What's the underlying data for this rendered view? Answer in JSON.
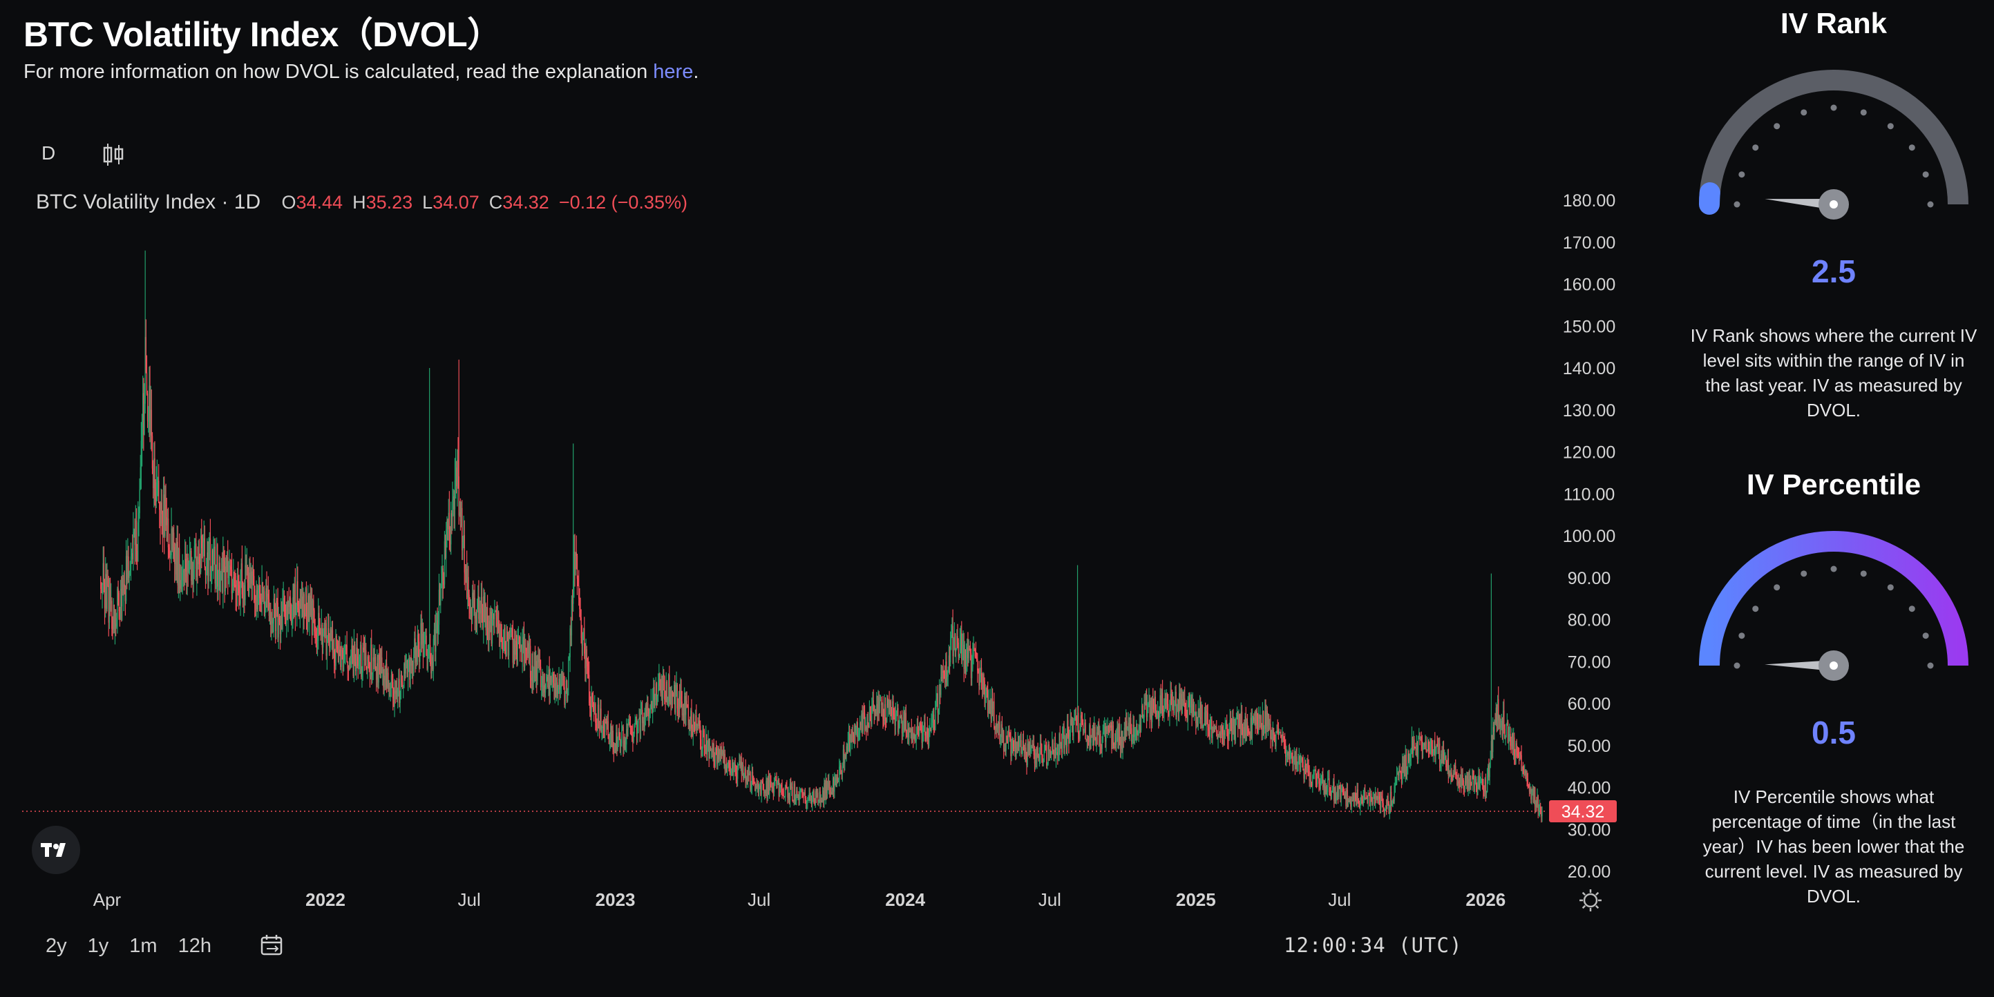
{
  "header": {
    "title": "BTC Volatility Index（DVOL）",
    "subtitle_prefix": "For more information on how DVOL is calculated, read the explanation ",
    "subtitle_link": "here",
    "subtitle_suffix": "."
  },
  "toolbar": {
    "interval_label": "D",
    "chart_type_icon": "candlestick-icon"
  },
  "legend": {
    "symbol": "BTC Volatility Index · 1D",
    "o_label": "O",
    "o_value": "34.44",
    "h_label": "H",
    "h_value": "35.23",
    "l_label": "L",
    "l_value": "34.07",
    "c_label": "C",
    "c_value": "34.32",
    "change": "−0.12 (−0.35%)"
  },
  "price_tag": "34.32",
  "ranges": [
    "2y",
    "1y",
    "1m",
    "12h"
  ],
  "clock": "12:00:34 (UTC)",
  "colors": {
    "up": "#22a06b",
    "down": "#ef4d57",
    "accent": "#6f83ff",
    "background": "#0b0c0e"
  },
  "chart_data": {
    "type": "candlestick",
    "title": "BTC Volatility Index · 1D",
    "y_ticks": [
      "180.00",
      "170.00",
      "160.00",
      "150.00",
      "140.00",
      "130.00",
      "120.00",
      "110.00",
      "100.00",
      "90.00",
      "80.00",
      "70.00",
      "60.00",
      "50.00",
      "40.00",
      "30.00",
      "20.00"
    ],
    "ylim": [
      20,
      180
    ],
    "x_ticks": [
      {
        "label": "Apr",
        "date": "2021-04-01",
        "bold": false
      },
      {
        "label": "2022",
        "date": "2022-01-01",
        "bold": true
      },
      {
        "label": "Jul",
        "date": "2022-07-01",
        "bold": false
      },
      {
        "label": "2023",
        "date": "2023-01-01",
        "bold": true
      },
      {
        "label": "Jul",
        "date": "2023-07-01",
        "bold": false
      },
      {
        "label": "2024",
        "date": "2024-01-01",
        "bold": true
      },
      {
        "label": "Jul",
        "date": "2024-07-01",
        "bold": false
      },
      {
        "label": "2025",
        "date": "2025-01-01",
        "bold": true
      },
      {
        "label": "Jul",
        "date": "2025-07-01",
        "bold": false
      },
      {
        "label": "2026",
        "date": "2026-01-01",
        "bold": true
      }
    ],
    "x_range": [
      "2020-12-15",
      "2026-03-20"
    ],
    "last_close": 34.32,
    "series_keypoints": [
      {
        "date": "2021-03-24",
        "close": 90
      },
      {
        "date": "2021-04-10",
        "close": 80
      },
      {
        "date": "2021-05-10",
        "close": 100
      },
      {
        "date": "2021-05-19",
        "close": 140
      },
      {
        "date": "2021-06-01",
        "close": 110
      },
      {
        "date": "2021-07-01",
        "close": 92
      },
      {
        "date": "2021-08-01",
        "close": 95
      },
      {
        "date": "2021-09-01",
        "close": 90
      },
      {
        "date": "2021-10-01",
        "close": 88
      },
      {
        "date": "2021-11-01",
        "close": 80
      },
      {
        "date": "2021-12-01",
        "close": 85
      },
      {
        "date": "2022-01-01",
        "close": 75
      },
      {
        "date": "2022-02-01",
        "close": 70
      },
      {
        "date": "2022-03-01",
        "close": 70
      },
      {
        "date": "2022-04-01",
        "close": 62
      },
      {
        "date": "2022-05-01",
        "close": 75
      },
      {
        "date": "2022-05-15",
        "close": 70
      },
      {
        "date": "2022-06-01",
        "close": 95
      },
      {
        "date": "2022-06-15",
        "close": 115
      },
      {
        "date": "2022-07-01",
        "close": 85
      },
      {
        "date": "2022-08-01",
        "close": 78
      },
      {
        "date": "2022-09-01",
        "close": 73
      },
      {
        "date": "2022-10-01",
        "close": 66
      },
      {
        "date": "2022-11-01",
        "close": 63
      },
      {
        "date": "2022-11-10",
        "close": 95
      },
      {
        "date": "2022-12-01",
        "close": 60
      },
      {
        "date": "2023-01-01",
        "close": 50
      },
      {
        "date": "2023-02-01",
        "close": 55
      },
      {
        "date": "2023-03-01",
        "close": 65
      },
      {
        "date": "2023-04-01",
        "close": 58
      },
      {
        "date": "2023-05-01",
        "close": 48
      },
      {
        "date": "2023-06-01",
        "close": 45
      },
      {
        "date": "2023-07-01",
        "close": 40
      },
      {
        "date": "2023-08-01",
        "close": 40
      },
      {
        "date": "2023-09-01",
        "close": 37
      },
      {
        "date": "2023-10-01",
        "close": 40
      },
      {
        "date": "2023-11-01",
        "close": 55
      },
      {
        "date": "2023-12-01",
        "close": 60
      },
      {
        "date": "2024-01-01",
        "close": 55
      },
      {
        "date": "2024-02-01",
        "close": 52
      },
      {
        "date": "2024-03-01",
        "close": 75
      },
      {
        "date": "2024-04-01",
        "close": 68
      },
      {
        "date": "2024-05-01",
        "close": 52
      },
      {
        "date": "2024-06-01",
        "close": 48
      },
      {
        "date": "2024-07-01",
        "close": 48
      },
      {
        "date": "2024-08-01",
        "close": 55
      },
      {
        "date": "2024-09-01",
        "close": 52
      },
      {
        "date": "2024-10-01",
        "close": 52
      },
      {
        "date": "2024-11-01",
        "close": 58
      },
      {
        "date": "2024-12-01",
        "close": 60
      },
      {
        "date": "2025-01-01",
        "close": 58
      },
      {
        "date": "2025-02-01",
        "close": 52
      },
      {
        "date": "2025-03-01",
        "close": 55
      },
      {
        "date": "2025-04-01",
        "close": 55
      },
      {
        "date": "2025-05-01",
        "close": 47
      },
      {
        "date": "2025-06-01",
        "close": 42
      },
      {
        "date": "2025-07-01",
        "close": 38
      },
      {
        "date": "2025-08-01",
        "close": 37
      },
      {
        "date": "2025-09-01",
        "close": 36
      },
      {
        "date": "2025-10-01",
        "close": 50
      },
      {
        "date": "2025-11-01",
        "close": 48
      },
      {
        "date": "2025-12-01",
        "close": 42
      },
      {
        "date": "2026-01-01",
        "close": 40
      },
      {
        "date": "2026-01-15",
        "close": 58
      },
      {
        "date": "2026-02-01",
        "close": 52
      },
      {
        "date": "2026-02-20",
        "close": 42
      },
      {
        "date": "2026-03-05",
        "close": 37
      },
      {
        "date": "2026-03-13",
        "close": 34.32
      }
    ],
    "spikes": [
      {
        "date": "2021-05-19",
        "high": 168
      },
      {
        "date": "2022-05-12",
        "high": 140
      },
      {
        "date": "2022-06-18",
        "high": 142
      },
      {
        "date": "2022-11-09",
        "high": 122
      },
      {
        "date": "2024-08-05",
        "high": 93
      },
      {
        "date": "2026-01-08",
        "high": 91
      }
    ]
  },
  "iv_rank": {
    "title": "IV Rank",
    "value": "2.5",
    "fraction": 0.025,
    "description": "IV Rank shows where the current IV level sits within the range of IV in the last year. IV as measured by DVOL."
  },
  "iv_percentile": {
    "title": "IV Percentile",
    "value": "0.5",
    "fraction": 0.005,
    "description": "IV Percentile shows what percentage of time（in the last year）IV has been lower that the current level. IV as measured by DVOL."
  }
}
